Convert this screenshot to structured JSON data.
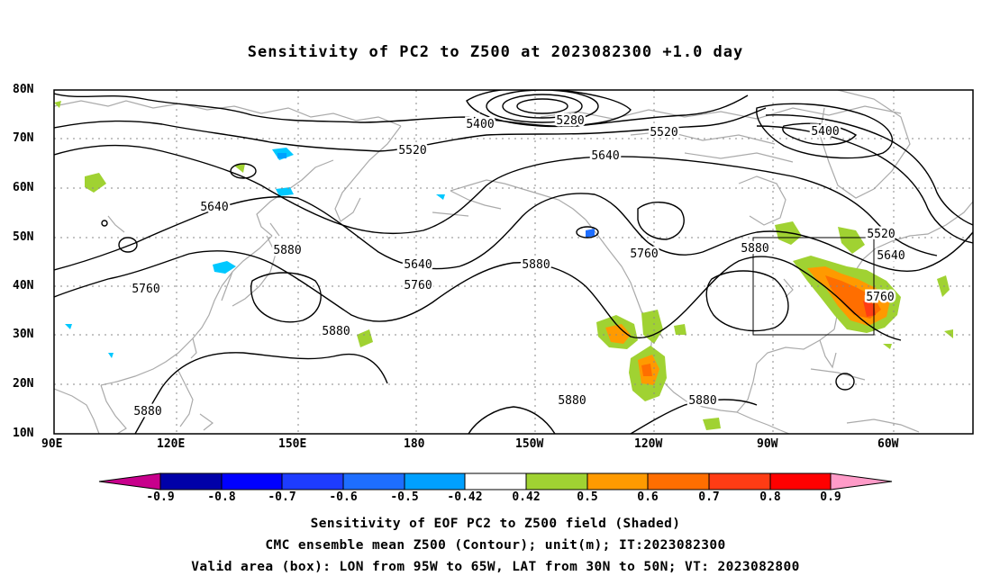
{
  "title": "Sensitivity of PC2 to Z500 at 2023082300 +1.0 day",
  "lat_labels": [
    "80N",
    "70N",
    "60N",
    "50N",
    "40N",
    "30N",
    "20N",
    "10N"
  ],
  "lon_labels": [
    "90E",
    "120E",
    "150E",
    "180",
    "150W",
    "120W",
    "90W",
    "60W"
  ],
  "contours": [
    {
      "label": "5400",
      "level": 5400
    },
    {
      "label": "5280",
      "level": 5280
    },
    {
      "label": "5520",
      "level": 5520
    },
    {
      "label": "5400",
      "level": 5400
    },
    {
      "label": "5520",
      "level": 5520
    },
    {
      "label": "5640",
      "level": 5640
    },
    {
      "label": "5520",
      "level": 5520
    },
    {
      "label": "5640",
      "level": 5640
    },
    {
      "label": "5880",
      "level": 5880
    },
    {
      "label": "5880",
      "level": 5880
    },
    {
      "label": "5760",
      "level": 5760
    },
    {
      "label": "5640",
      "level": 5640
    },
    {
      "label": "5760",
      "level": 5760
    },
    {
      "label": "5760",
      "level": 5760
    },
    {
      "label": "5880",
      "level": 5880
    },
    {
      "label": "5880",
      "level": 5880
    },
    {
      "label": "5880",
      "level": 5880
    },
    {
      "label": "5880",
      "level": 5880
    },
    {
      "label": "5880",
      "level": 5880
    },
    {
      "label": "5640",
      "level": 5640
    },
    {
      "label": "5760",
      "level": 5760
    }
  ],
  "colorbar": {
    "labels": [
      "-0.9",
      "-0.8",
      "-0.7",
      "-0.6",
      "-0.5",
      "-0.42",
      "0.42",
      "0.5",
      "0.6",
      "0.7",
      "0.8",
      "0.9"
    ],
    "colors": [
      "#0000a8",
      "#0000ff",
      "#1e3cff",
      "#1e6eff",
      "#00a0ff",
      "#00c8ff",
      "#ffffff",
      "#a0d232",
      "#ff9a00",
      "#ff6e00",
      "#ff3c14",
      "#ff0000"
    ],
    "left_cap_color": "#c8008c",
    "right_cap_color": "#ff9bc8"
  },
  "valid_box": {
    "lon_min": "95W",
    "lon_max": "65W",
    "lat_min": "30N",
    "lat_max": "50N"
  },
  "captions": {
    "line1": "Sensitivity of EOF PC2 to Z500 field (Shaded)",
    "line2": "CMC ensemble mean Z500 (Contour); unit(m); IT:2023082300",
    "line3": "Valid area (box): LON from 95W to 65W, LAT from 30N to 50N; VT: 2023082800"
  },
  "colors": {
    "coast": "#aaaaaa",
    "grid": "#888888",
    "contour": "#000000"
  }
}
